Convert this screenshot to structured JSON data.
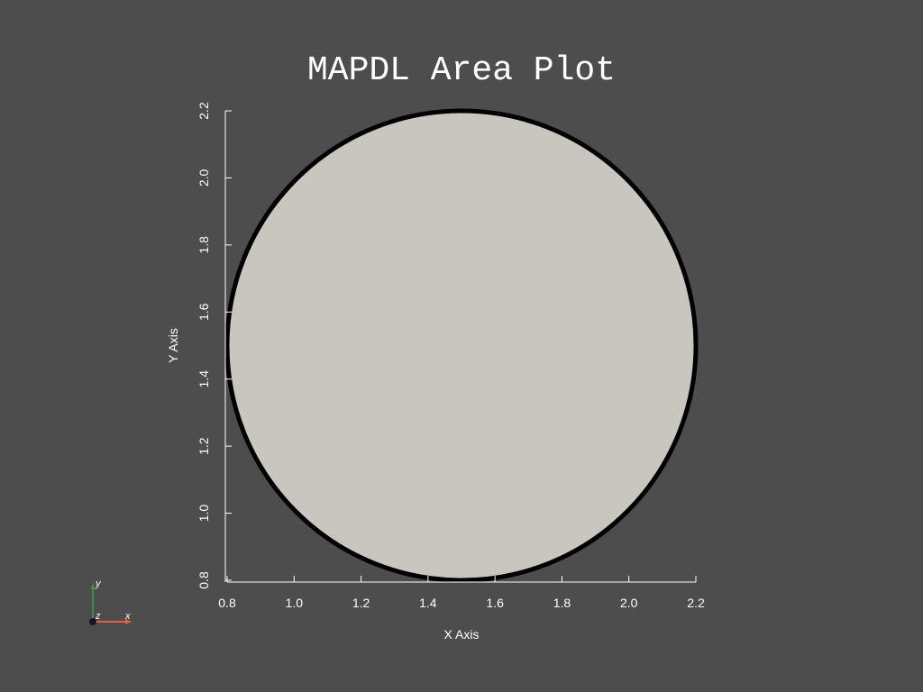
{
  "colors": {
    "background": "#4d4d4d",
    "fill": "#c8c6be",
    "edge": "#000000",
    "axis": "#ffffff",
    "triad_x": "#e2613f",
    "triad_y": "#3f8a52",
    "triad_origin": "#141430"
  },
  "chart_data": {
    "type": "area",
    "title": "MAPDL Area Plot",
    "xlabel": "X Axis",
    "ylabel": "Y Axis",
    "xlim": [
      0.8,
      2.2
    ],
    "ylim": [
      0.8,
      2.2
    ],
    "x_ticks": [
      "0.8",
      "1.0",
      "1.2",
      "1.4",
      "1.6",
      "1.8",
      "2.0",
      "2.2"
    ],
    "y_ticks": [
      "0.8",
      "1.0",
      "1.2",
      "1.4",
      "1.6",
      "1.8",
      "2.0",
      "2.2"
    ],
    "shapes": [
      {
        "kind": "circle",
        "center_x": 1.5,
        "center_y": 1.5,
        "radius": 0.7
      }
    ]
  },
  "triad": {
    "x_label": "x",
    "y_label": "y",
    "z_label": "z"
  }
}
